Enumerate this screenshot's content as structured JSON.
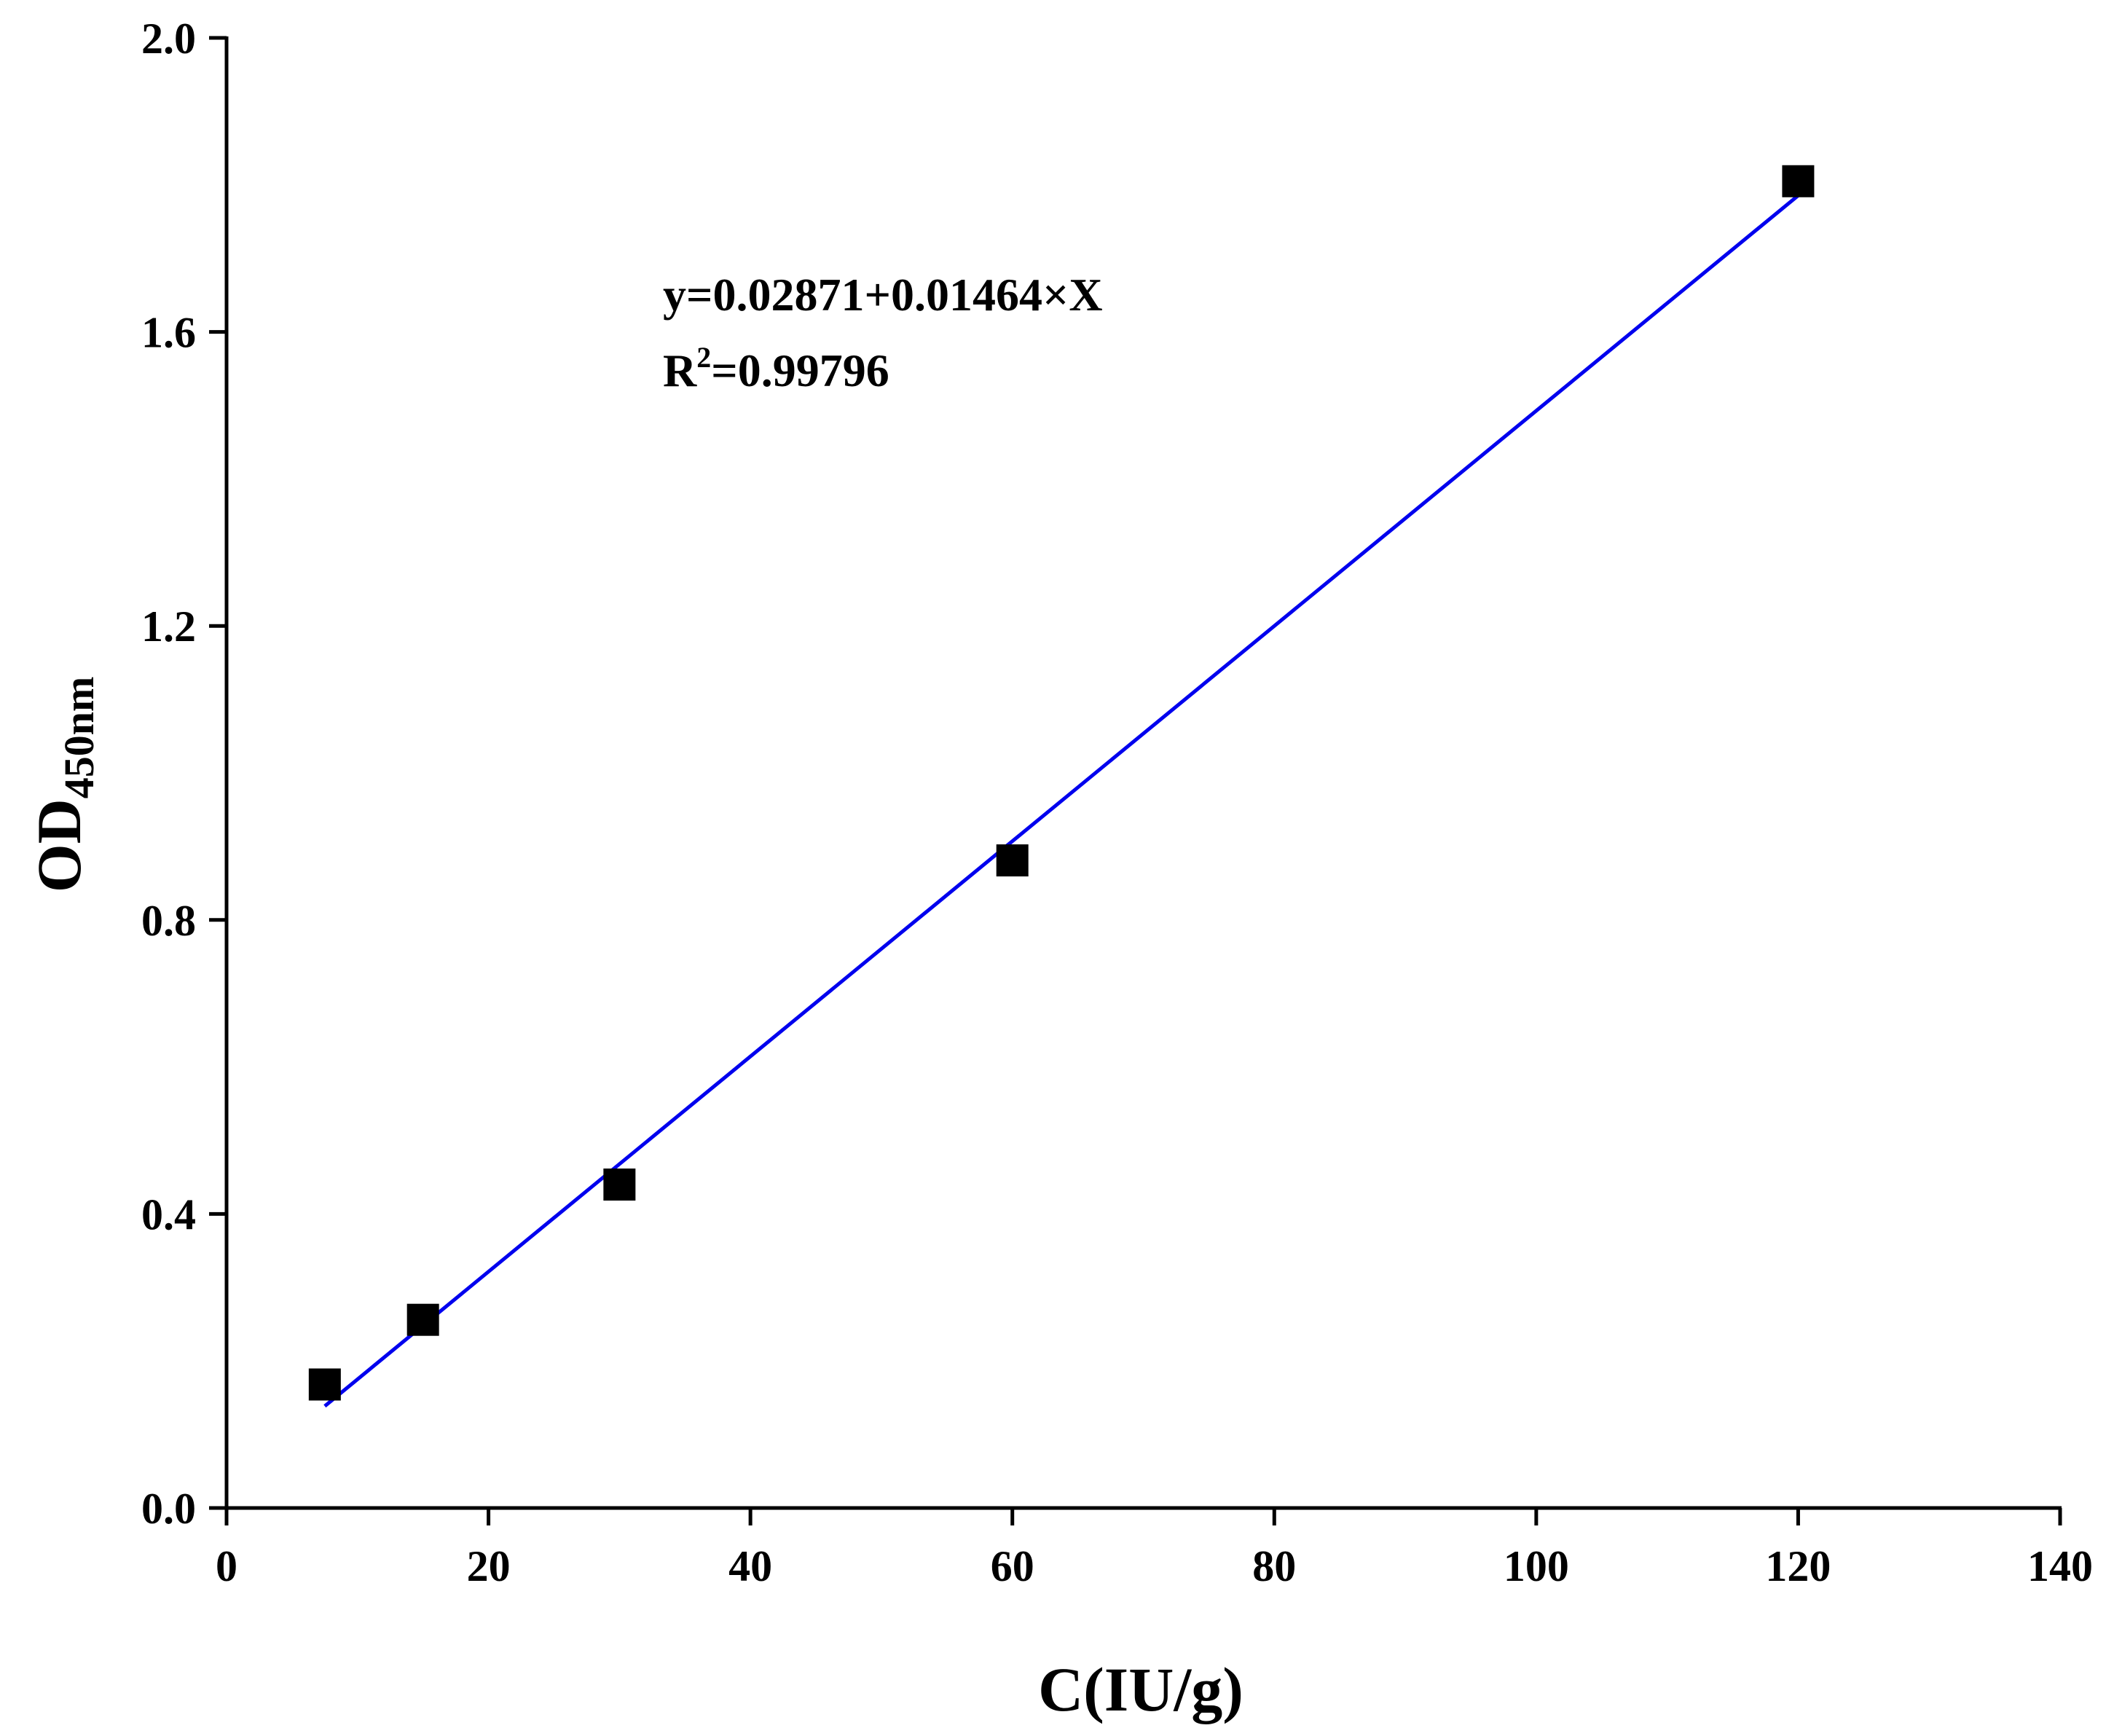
{
  "chart_data": {
    "type": "scatter",
    "xlabel": "C(IU/g)",
    "ylabel_main": "OD",
    "ylabel_sub": "450nm",
    "xlim": [
      0,
      140
    ],
    "ylim": [
      0.0,
      2.0
    ],
    "x_ticks": [
      "0",
      "20",
      "40",
      "60",
      "80",
      "100",
      "120",
      "140"
    ],
    "x_tick_values": [
      0,
      20,
      40,
      60,
      80,
      100,
      120,
      140
    ],
    "y_ticks": [
      "0.0",
      "0.4",
      "0.8",
      "1.2",
      "1.6",
      "2.0"
    ],
    "y_tick_values": [
      0.0,
      0.4,
      0.8,
      1.2,
      1.6,
      2.0
    ],
    "grid": false,
    "series": [
      {
        "marker": "square",
        "color": "#000000",
        "points": [
          {
            "x": 7.5,
            "y": 0.168
          },
          {
            "x": 15,
            "y": 0.256
          },
          {
            "x": 30,
            "y": 0.44
          },
          {
            "x": 60,
            "y": 0.881
          },
          {
            "x": 120,
            "y": 1.805
          }
        ]
      }
    ],
    "fit": {
      "color": "#0000ee",
      "intercept": 0.02871,
      "slope": 0.01464,
      "x_range": [
        7.5,
        120
      ],
      "equation_text": "y=0.02871+0.01464×X",
      "r2_prefix": "R",
      "r2_sup": "2",
      "r2_value": "=0.99796"
    }
  }
}
